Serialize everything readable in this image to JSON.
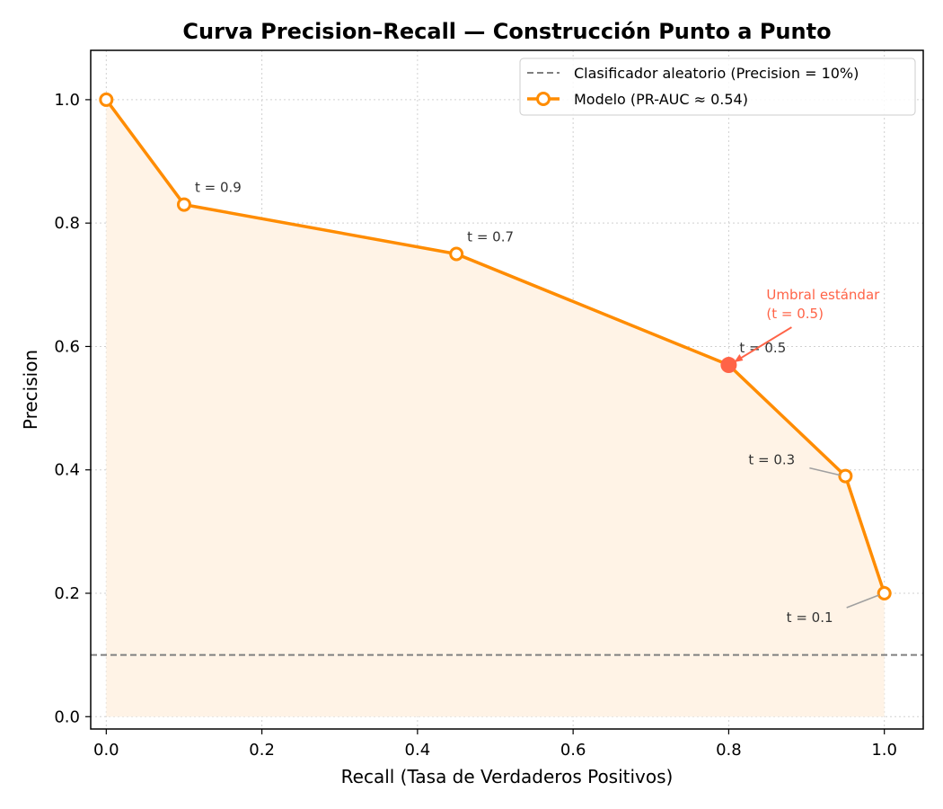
{
  "chart_data": {
    "type": "line",
    "title": "Curva Precision–Recall — Construcción Punto a Punto",
    "xlabel": "Recall (Tasa de Verdaderos Positivos)",
    "ylabel": "Precision",
    "xlim": [
      -0.02,
      1.05
    ],
    "ylim": [
      -0.02,
      1.08
    ],
    "xticks": [
      0.0,
      0.2,
      0.4,
      0.6,
      0.8,
      1.0
    ],
    "xtick_labels": [
      "0.0",
      "0.2",
      "0.4",
      "0.6",
      "0.8",
      "1.0"
    ],
    "yticks": [
      0.0,
      0.2,
      0.4,
      0.6,
      0.8,
      1.0
    ],
    "ytick_labels": [
      "0.0",
      "0.2",
      "0.4",
      "0.6",
      "0.8",
      "1.0"
    ],
    "grid": true,
    "series": [
      {
        "name": "Modelo (PR-AUC ≈ 0.54)",
        "style": "solid-with-hollow-markers",
        "color": "#ff8c00",
        "fill": "#fff3e6",
        "x": [
          0.0,
          0.1,
          0.45,
          0.8,
          0.95,
          1.0
        ],
        "y": [
          1.0,
          0.83,
          0.75,
          0.57,
          0.39,
          0.2
        ]
      }
    ],
    "baseline": {
      "name": "Clasificador aleatorio (Precision = 10%)",
      "y": 0.1,
      "color": "#808080",
      "style": "dashed"
    },
    "annotations": [
      {
        "text": "t = 0.9",
        "x": 0.1,
        "y": 0.83,
        "placement": "upper-right"
      },
      {
        "text": "t = 0.7",
        "x": 0.45,
        "y": 0.75,
        "placement": "upper-right"
      },
      {
        "text": "t = 0.5",
        "x": 0.8,
        "y": 0.57,
        "placement": "upper-right"
      },
      {
        "text": "t = 0.3",
        "x": 0.95,
        "y": 0.39,
        "placement": "left-with-arrow"
      },
      {
        "text": "t = 0.1",
        "x": 1.0,
        "y": 0.2,
        "placement": "lower-left-with-arrow"
      }
    ],
    "highlight": {
      "x": 0.8,
      "y": 0.57,
      "color": "#ff6347",
      "label_lines": [
        "Umbral estándar",
        "(t = 0.5)"
      ]
    },
    "legend_position": "top-right"
  }
}
